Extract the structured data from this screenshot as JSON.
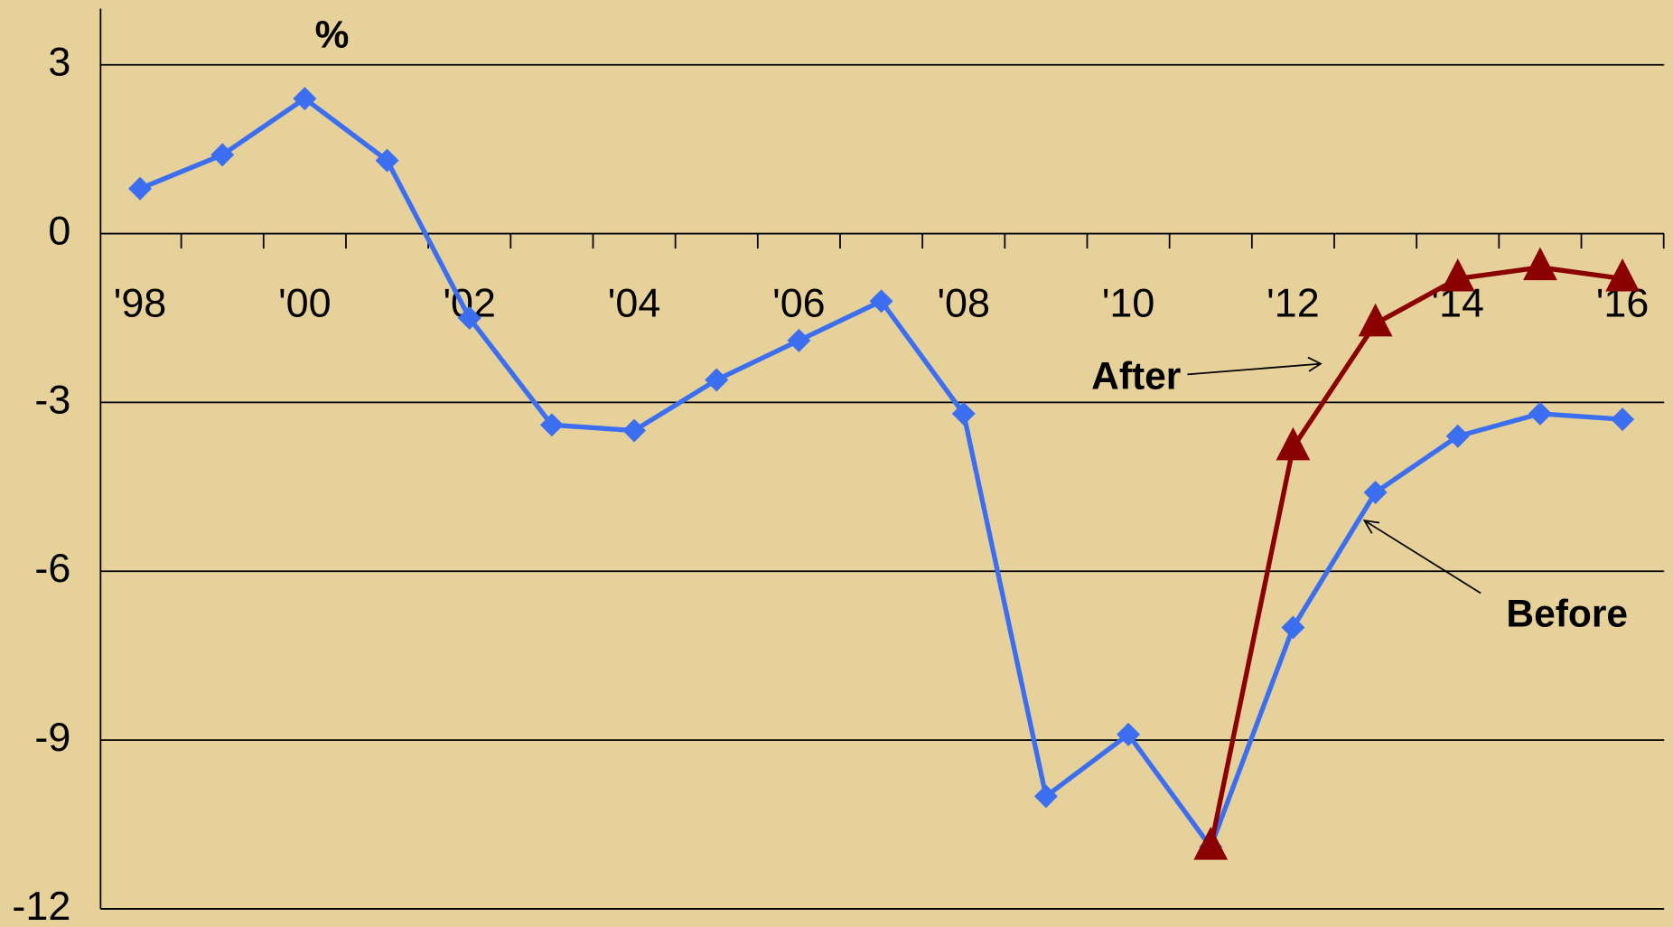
{
  "chart_data": {
    "type": "line",
    "title": "%",
    "categories": [
      "'98",
      null,
      "'00",
      null,
      "'02",
      null,
      "'04",
      null,
      "'06",
      null,
      "'08",
      null,
      "'10",
      null,
      "'12",
      null,
      "'14",
      null,
      "'16"
    ],
    "series": [
      {
        "name": "Before",
        "color": "#3b6ef0",
        "marker": "diamond",
        "values": [
          0.8,
          1.4,
          2.4,
          1.3,
          -1.5,
          -3.4,
          -3.5,
          -2.6,
          -1.9,
          -1.2,
          -3.2,
          -10.0,
          -8.9,
          -10.9,
          -7.0,
          -4.6,
          -3.6,
          -3.2,
          -3.3
        ]
      },
      {
        "name": "After",
        "color": "#8b0000",
        "marker": "triangle",
        "values": [
          null,
          null,
          null,
          null,
          null,
          null,
          null,
          null,
          null,
          null,
          null,
          null,
          null,
          -10.9,
          -3.8,
          -1.6,
          -0.8,
          -0.6,
          -0.8
        ]
      }
    ],
    "ylim": [
      -12,
      4
    ],
    "yticks": [
      -12,
      -9,
      -6,
      -3,
      0,
      3
    ],
    "grid": true
  }
}
